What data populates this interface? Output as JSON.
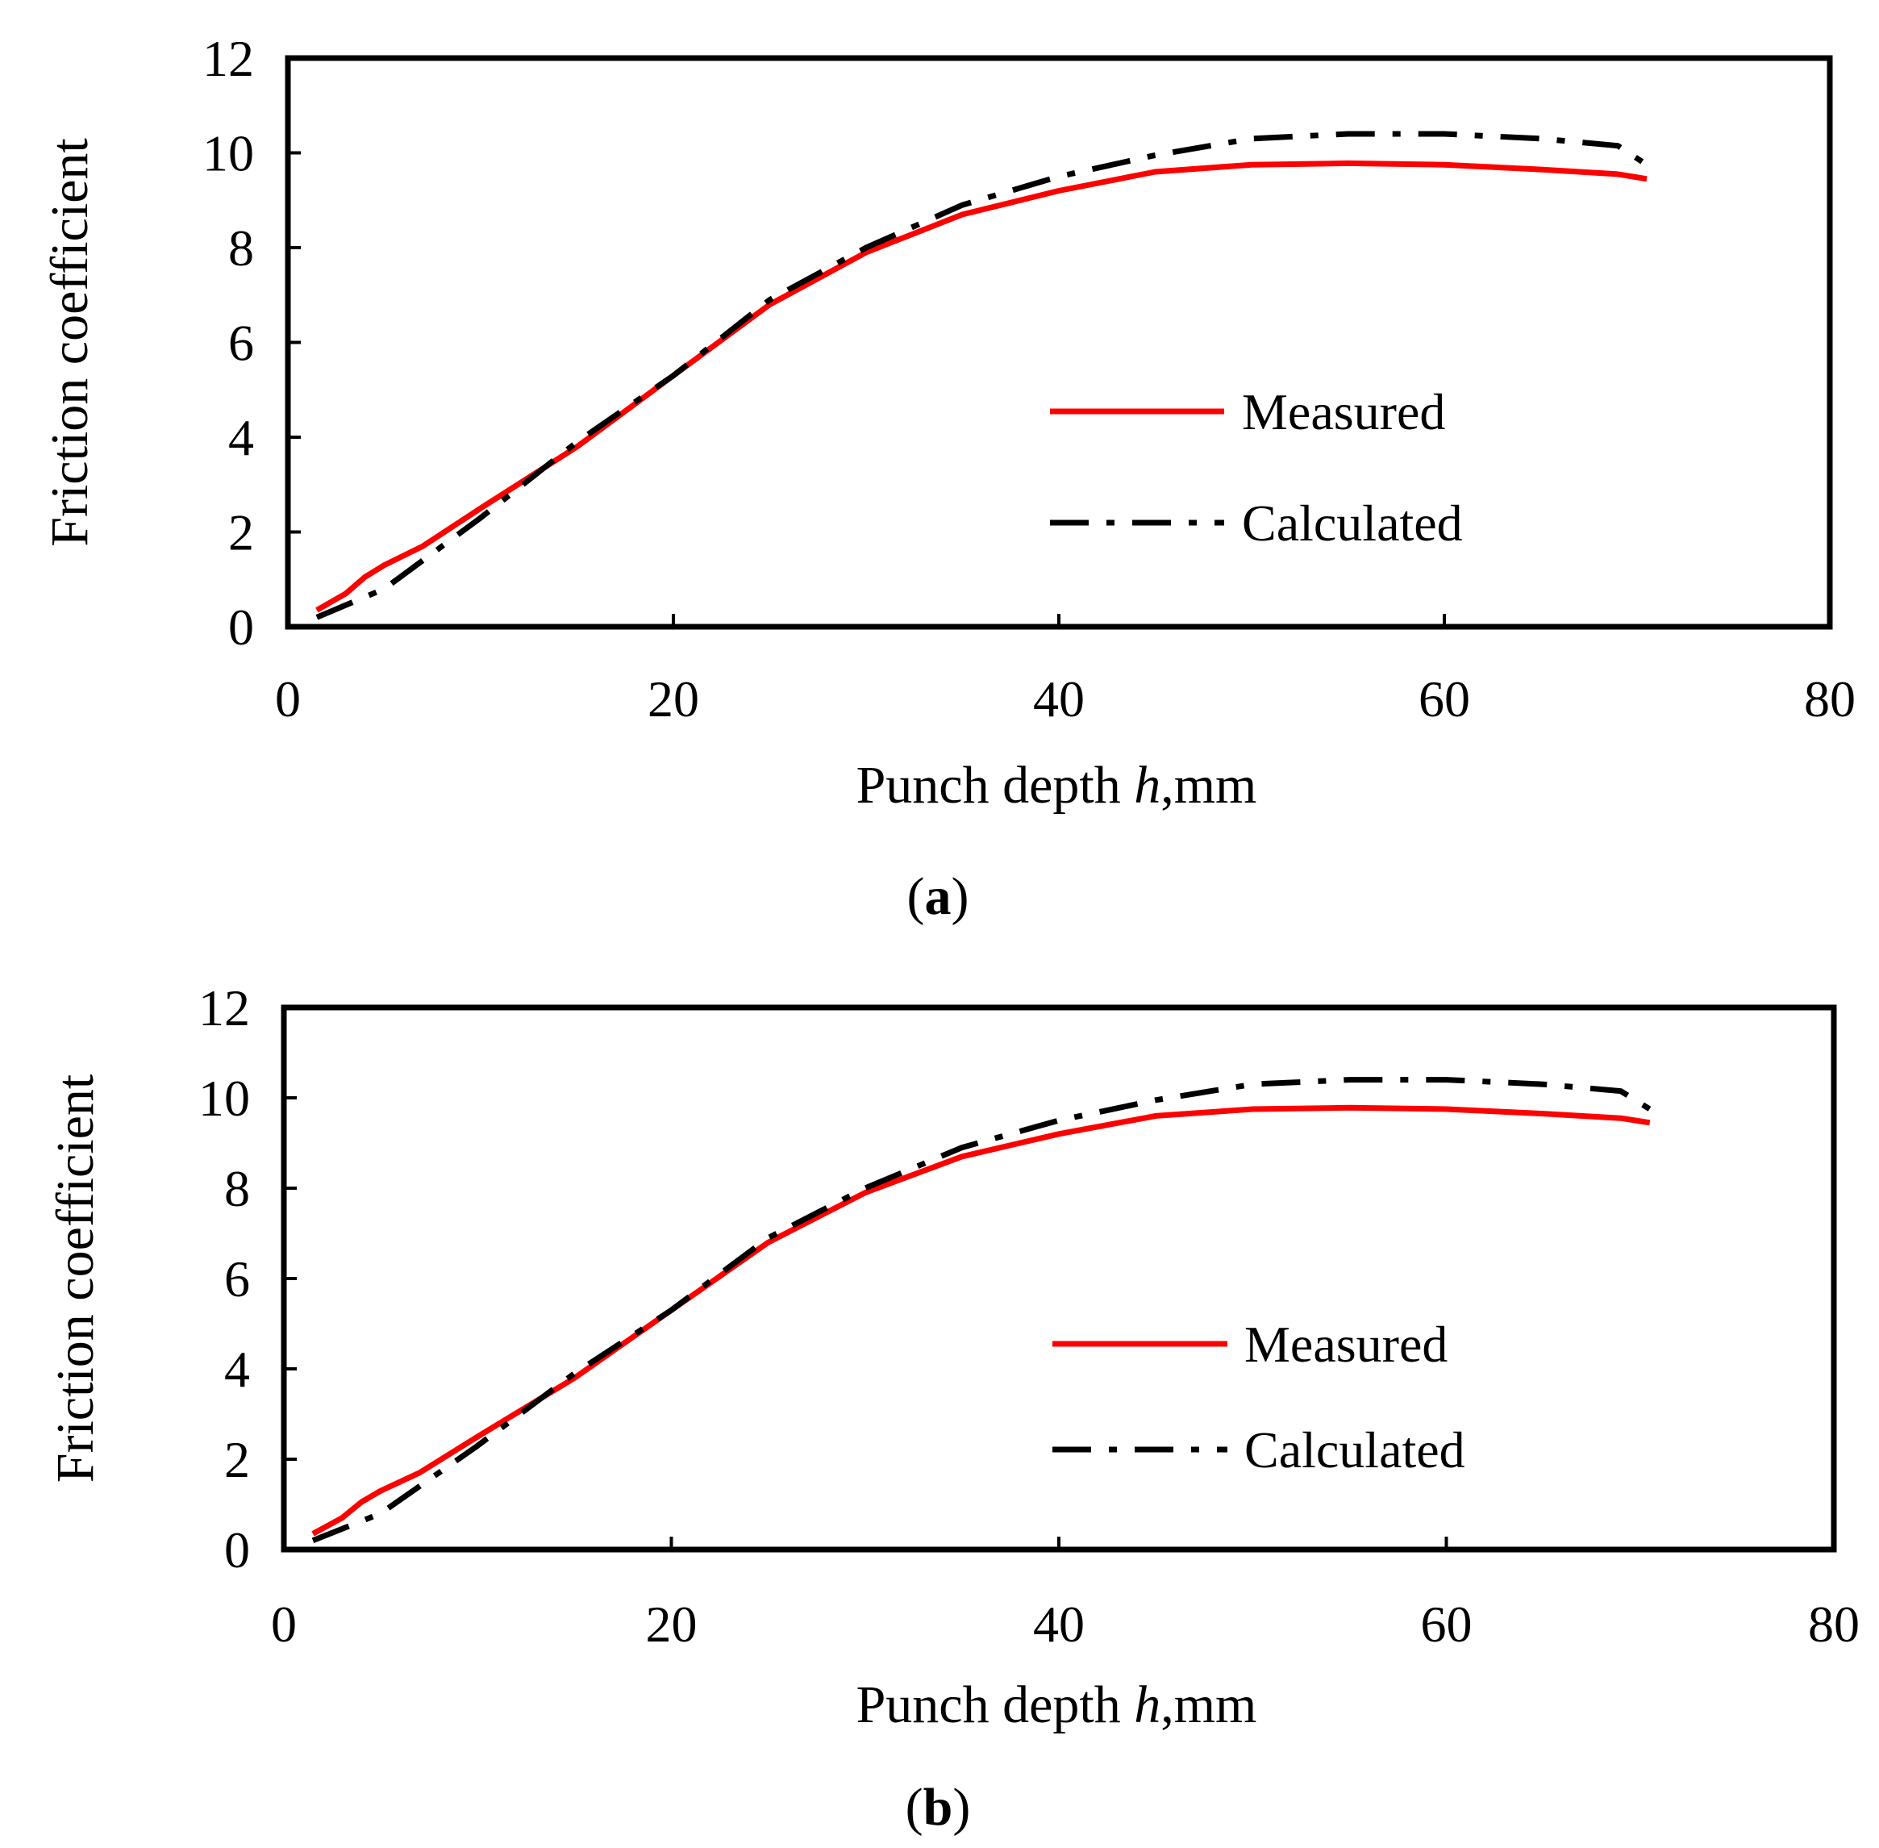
{
  "chart_data": [
    {
      "type": "line",
      "panel": "a",
      "caption": {
        "open": "(",
        "letter": "a",
        "close": ")"
      },
      "xlabel": {
        "prefix": "Punch depth ",
        "var": "h",
        "suffix": ",mm"
      },
      "ylabel": "Friction coefficient",
      "xlim": [
        0,
        80
      ],
      "ylim": [
        0,
        12
      ],
      "xticks": [
        "0",
        "20",
        "40",
        "60",
        "80"
      ],
      "yticks": [
        "0",
        "2",
        "4",
        "6",
        "8",
        "10",
        "12"
      ],
      "grid": false,
      "legend_position": "center-right",
      "series": [
        {
          "name": "Measured",
          "color": "#ff0000",
          "style": "solid",
          "x": [
            1.5,
            3,
            4,
            5,
            7,
            10,
            15,
            20,
            25,
            30,
            35,
            40,
            45,
            50,
            55,
            60,
            65,
            69,
            70.5
          ],
          "y": [
            0.35,
            0.7,
            1.05,
            1.3,
            1.7,
            2.5,
            3.8,
            5.3,
            6.8,
            7.9,
            8.7,
            9.2,
            9.6,
            9.75,
            9.78,
            9.75,
            9.65,
            9.55,
            9.45
          ]
        },
        {
          "name": "Calculated",
          "color": "#000000",
          "style": "dashdot",
          "x": [
            1.5,
            5,
            10,
            15,
            20,
            25,
            30,
            35,
            40,
            45,
            50,
            55,
            60,
            65,
            69,
            70.5
          ],
          "y": [
            0.2,
            0.8,
            2.3,
            3.9,
            5.3,
            6.9,
            8.0,
            8.9,
            9.5,
            9.95,
            10.3,
            10.4,
            10.4,
            10.3,
            10.15,
            9.75
          ]
        }
      ]
    },
    {
      "type": "line",
      "panel": "b",
      "caption": {
        "open": "(",
        "letter": "b",
        "close": ")"
      },
      "xlabel": {
        "prefix": "Punch depth ",
        "var": "h",
        "suffix": ",mm"
      },
      "ylabel": "Friction coefficient",
      "xlim": [
        0,
        80
      ],
      "ylim": [
        0,
        12
      ],
      "xticks": [
        "0",
        "20",
        "40",
        "60",
        "80"
      ],
      "yticks": [
        "0",
        "2",
        "4",
        "6",
        "8",
        "10",
        "12"
      ],
      "grid": false,
      "legend_position": "center-right",
      "series": [
        {
          "name": "Measured",
          "color": "#ff0000",
          "style": "solid",
          "x": [
            1.5,
            3,
            4,
            5,
            7,
            10,
            15,
            20,
            25,
            30,
            35,
            40,
            45,
            50,
            55,
            60,
            65,
            69,
            70.5
          ],
          "y": [
            0.35,
            0.7,
            1.05,
            1.3,
            1.7,
            2.5,
            3.8,
            5.3,
            6.8,
            7.9,
            8.7,
            9.2,
            9.6,
            9.75,
            9.78,
            9.75,
            9.65,
            9.55,
            9.45
          ]
        },
        {
          "name": "Calculated",
          "color": "#000000",
          "style": "dashdot",
          "x": [
            1.5,
            5,
            10,
            15,
            20,
            25,
            30,
            35,
            40,
            45,
            50,
            55,
            60,
            65,
            69,
            70.5
          ],
          "y": [
            0.2,
            0.8,
            2.3,
            3.9,
            5.3,
            6.9,
            8.0,
            8.9,
            9.5,
            9.95,
            10.3,
            10.4,
            10.4,
            10.3,
            10.15,
            9.75
          ]
        }
      ]
    }
  ]
}
